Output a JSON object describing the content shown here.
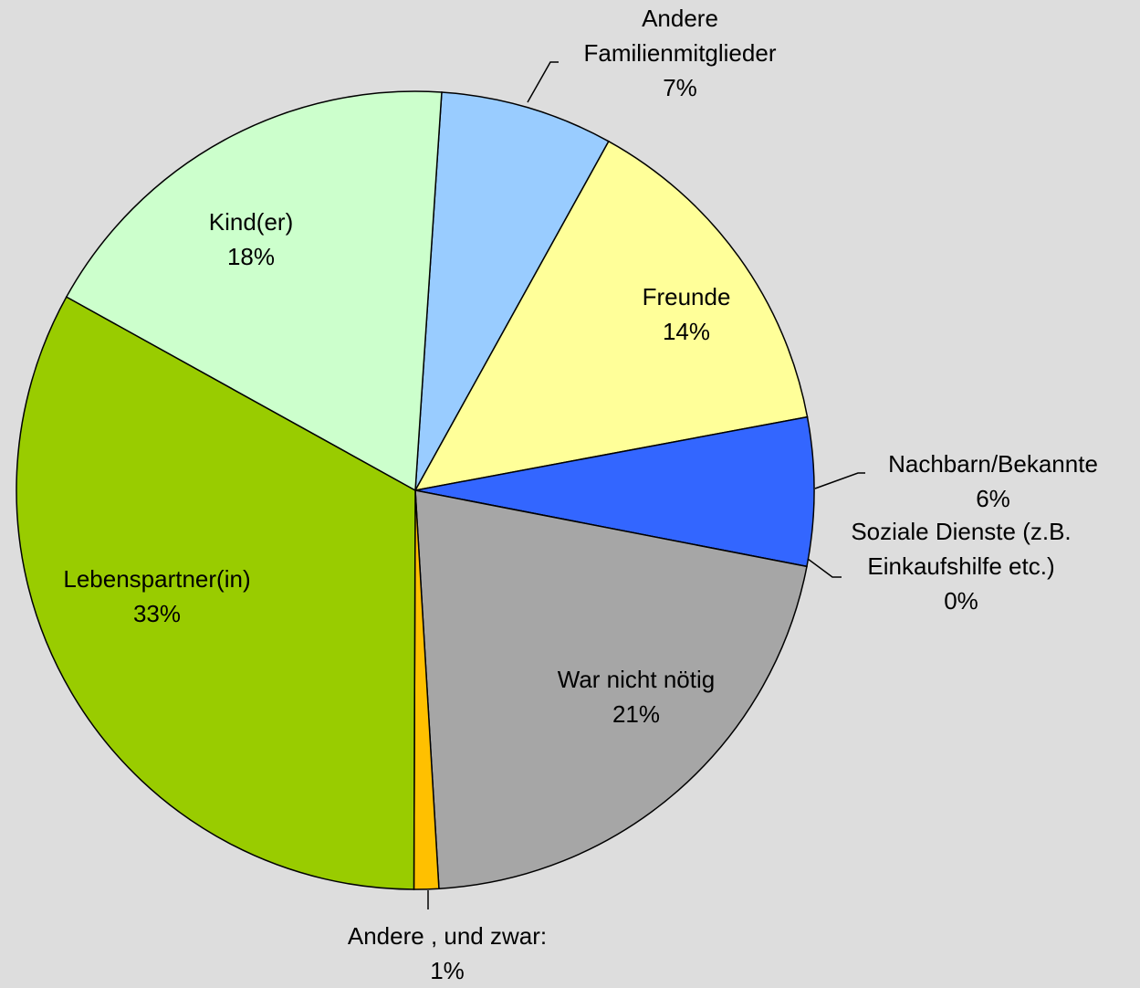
{
  "chart_data": {
    "type": "pie",
    "categories": [
      "Andere Familienmitglieder",
      "Freunde",
      "Nachbarn/Bekannte",
      "Soziale Dienste (z.B. Einkaufshilfe etc.)",
      "War nicht nötig",
      "Andere , und zwar:",
      "Lebenspartner(in)",
      "Kind(er)"
    ],
    "values": [
      7,
      14,
      6,
      0,
      21,
      1,
      33,
      18
    ],
    "value_labels": [
      "7%",
      "14%",
      "6%",
      "0%",
      "21%",
      "1%",
      "33%",
      "18%"
    ],
    "colors": [
      "#99ccff",
      "#ffff99",
      "#3366ff",
      "#ff99cc",
      "#a6a6a6",
      "#ffc000",
      "#99cc00",
      "#ccffcc"
    ]
  }
}
